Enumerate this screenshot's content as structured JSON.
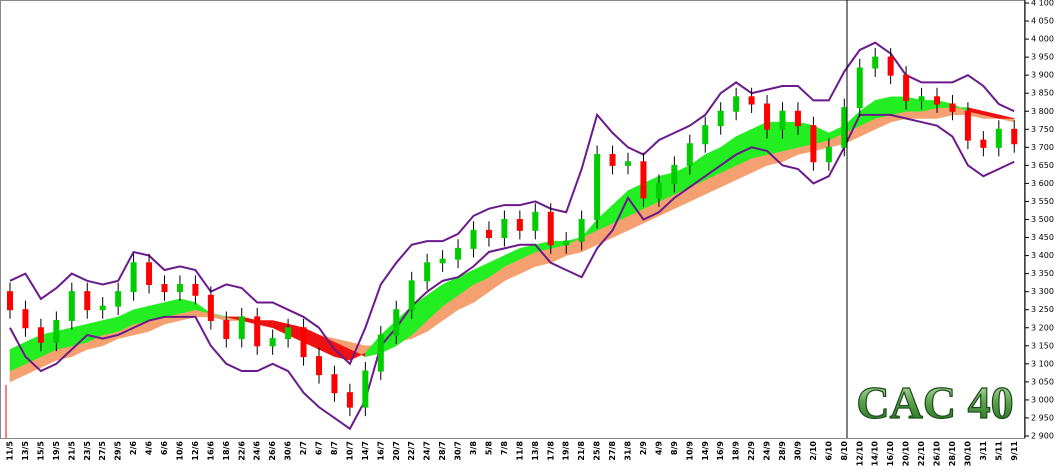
{
  "chart_data": {
    "type": "candlestick",
    "title": "CAC 40",
    "categories": [
      "11/5",
      "13/5",
      "15/5",
      "19/5",
      "21/5",
      "23/5",
      "27/5",
      "29/5",
      "2/6",
      "4/6",
      "6/6",
      "10/6",
      "12/6",
      "16/6",
      "18/6",
      "22/6",
      "24/6",
      "26/6",
      "30/6",
      "2/7",
      "6/7",
      "8/7",
      "10/7",
      "14/7",
      "16/7",
      "20/7",
      "22/7",
      "24/7",
      "28/7",
      "30/7",
      "3/8",
      "5/8",
      "7/8",
      "11/8",
      "13/8",
      "17/8",
      "19/8",
      "21/8",
      "25/8",
      "27/8",
      "31/8",
      "2/9",
      "4/9",
      "8/9",
      "10/9",
      "14/9",
      "16/9",
      "18/9",
      "22/9",
      "24/9",
      "28/9",
      "30/9",
      "2/10",
      "6/10",
      "8/10",
      "12/10",
      "14/10",
      "16/10",
      "20/10",
      "22/10",
      "26/10",
      "28/10",
      "30/10",
      "3/11",
      "5/11",
      "9/11"
    ],
    "open": [
      3300,
      3250,
      3200,
      3160,
      3220,
      3300,
      3250,
      3260,
      3300,
      3380,
      3320,
      3300,
      3320,
      3290,
      3220,
      3170,
      3230,
      3150,
      3170,
      3200,
      3120,
      3070,
      3020,
      2980,
      3080,
      3180,
      3250,
      3330,
      3380,
      3390,
      3420,
      3470,
      3450,
      3500,
      3470,
      3520,
      3430,
      3440,
      3500,
      3680,
      3650,
      3660,
      3560,
      3600,
      3650,
      3710,
      3760,
      3800,
      3840,
      3820,
      3750,
      3800,
      3760,
      3660,
      3700,
      3810,
      3920,
      3950,
      3900,
      3830,
      3840,
      3820,
      3800,
      3720,
      3700,
      3750
    ],
    "high": [
      3325,
      3275,
      3225,
      3245,
      3325,
      3325,
      3285,
      3325,
      3405,
      3405,
      3345,
      3345,
      3345,
      3315,
      3245,
      3255,
      3255,
      3195,
      3225,
      3225,
      3145,
      3095,
      3045,
      3105,
      3205,
      3275,
      3355,
      3405,
      3415,
      3445,
      3495,
      3495,
      3525,
      3525,
      3545,
      3545,
      3465,
      3525,
      3705,
      3705,
      3685,
      3685,
      3625,
      3675,
      3735,
      3785,
      3825,
      3865,
      3865,
      3845,
      3825,
      3825,
      3785,
      3725,
      3835,
      3945,
      3975,
      3975,
      3925,
      3865,
      3865,
      3845,
      3825,
      3745,
      3775,
      3775
    ],
    "low": [
      3225,
      3175,
      3135,
      3135,
      3195,
      3225,
      3225,
      3235,
      3275,
      3295,
      3275,
      3275,
      3265,
      3195,
      3145,
      3145,
      3125,
      3125,
      3145,
      3095,
      3045,
      2995,
      2955,
      2955,
      3055,
      3155,
      3225,
      3305,
      3355,
      3365,
      3395,
      3425,
      3425,
      3445,
      3445,
      3405,
      3405,
      3415,
      3475,
      3625,
      3625,
      3535,
      3535,
      3575,
      3625,
      3685,
      3735,
      3775,
      3795,
      3725,
      3725,
      3735,
      3635,
      3635,
      3675,
      3785,
      3895,
      3875,
      3805,
      3805,
      3795,
      3775,
      3695,
      3675,
      3675,
      3685
    ],
    "close": [
      3250,
      3200,
      3160,
      3220,
      3300,
      3250,
      3260,
      3300,
      3380,
      3320,
      3300,
      3320,
      3290,
      3220,
      3170,
      3230,
      3150,
      3170,
      3200,
      3120,
      3070,
      3020,
      2980,
      3080,
      3180,
      3250,
      3330,
      3380,
      3390,
      3420,
      3470,
      3450,
      3500,
      3470,
      3520,
      3430,
      3440,
      3500,
      3680,
      3650,
      3660,
      3560,
      3600,
      3650,
      3710,
      3760,
      3800,
      3840,
      3820,
      3750,
      3800,
      3760,
      3660,
      3700,
      3810,
      3920,
      3950,
      3900,
      3830,
      3840,
      3820,
      3800,
      3720,
      3700,
      3750,
      3710
    ],
    "up_color": "#00cc00",
    "down_color": "#ff0000",
    "bands": {
      "color": "#6a1a8a",
      "upper": [
        3330,
        3350,
        3280,
        3310,
        3350,
        3330,
        3320,
        3330,
        3410,
        3400,
        3360,
        3370,
        3360,
        3300,
        3320,
        3310,
        3270,
        3270,
        3250,
        3230,
        3200,
        3140,
        3100,
        3200,
        3320,
        3380,
        3430,
        3440,
        3440,
        3460,
        3510,
        3530,
        3540,
        3540,
        3550,
        3530,
        3520,
        3640,
        3790,
        3740,
        3700,
        3680,
        3720,
        3740,
        3760,
        3790,
        3850,
        3880,
        3850,
        3860,
        3870,
        3870,
        3830,
        3830,
        3910,
        3970,
        3990,
        3960,
        3900,
        3880,
        3880,
        3880,
        3900,
        3870,
        3820,
        3800
      ],
      "lower": [
        3200,
        3120,
        3080,
        3100,
        3140,
        3180,
        3170,
        3180,
        3200,
        3220,
        3230,
        3230,
        3230,
        3150,
        3100,
        3080,
        3080,
        3100,
        3080,
        3020,
        2980,
        2950,
        2920,
        3000,
        3150,
        3200,
        3260,
        3300,
        3330,
        3340,
        3370,
        3410,
        3420,
        3430,
        3430,
        3380,
        3360,
        3340,
        3420,
        3470,
        3560,
        3500,
        3520,
        3560,
        3590,
        3620,
        3650,
        3680,
        3700,
        3690,
        3650,
        3640,
        3600,
        3620,
        3700,
        3790,
        3790,
        3790,
        3780,
        3770,
        3760,
        3730,
        3650,
        3620,
        3640,
        3660
      ]
    },
    "ribbon": {
      "rise_color": "#22ee22",
      "fall_color": "#ee1111",
      "base_color": "#f4a070",
      "fast": [
        3140,
        3160,
        3180,
        3190,
        3200,
        3210,
        3220,
        3230,
        3250,
        3260,
        3270,
        3280,
        3270,
        3240,
        3230,
        3220,
        3210,
        3200,
        3180,
        3160,
        3140,
        3120,
        3110,
        3130,
        3180,
        3220,
        3260,
        3290,
        3320,
        3340,
        3360,
        3380,
        3400,
        3420,
        3430,
        3440,
        3440,
        3450,
        3500,
        3540,
        3580,
        3600,
        3620,
        3630,
        3650,
        3680,
        3700,
        3730,
        3750,
        3770,
        3770,
        3770,
        3760,
        3740,
        3760,
        3800,
        3830,
        3840,
        3840,
        3830,
        3830,
        3820,
        3800,
        3790,
        3780,
        3780
      ],
      "mid": [
        3080,
        3100,
        3120,
        3140,
        3150,
        3160,
        3180,
        3190,
        3210,
        3220,
        3230,
        3240,
        3250,
        3240,
        3230,
        3230,
        3220,
        3220,
        3210,
        3200,
        3180,
        3160,
        3140,
        3120,
        3130,
        3150,
        3180,
        3220,
        3260,
        3290,
        3320,
        3340,
        3370,
        3390,
        3410,
        3420,
        3430,
        3450,
        3470,
        3490,
        3510,
        3530,
        3550,
        3570,
        3590,
        3610,
        3630,
        3650,
        3670,
        3680,
        3690,
        3700,
        3710,
        3720,
        3740,
        3760,
        3780,
        3790,
        3800,
        3800,
        3810,
        3810,
        3810,
        3800,
        3790,
        3780
      ],
      "slow": [
        3050,
        3070,
        3090,
        3110,
        3120,
        3140,
        3150,
        3170,
        3180,
        3190,
        3210,
        3220,
        3230,
        3230,
        3220,
        3220,
        3210,
        3200,
        3200,
        3190,
        3180,
        3170,
        3160,
        3150,
        3150,
        3160,
        3170,
        3190,
        3220,
        3250,
        3270,
        3300,
        3330,
        3350,
        3370,
        3380,
        3400,
        3410,
        3430,
        3450,
        3470,
        3490,
        3510,
        3530,
        3550,
        3570,
        3590,
        3610,
        3630,
        3650,
        3660,
        3680,
        3690,
        3700,
        3710,
        3730,
        3750,
        3770,
        3780,
        3780,
        3780,
        3790,
        3790,
        3780,
        3780,
        3770
      ]
    },
    "ylim": [
      2900,
      4100
    ],
    "yticks": [
      {
        "value": 2900,
        "label": "2 900"
      },
      {
        "value": 2950,
        "label": "2 950"
      },
      {
        "value": 3000,
        "label": "3 000"
      },
      {
        "value": 3050,
        "label": "3 050"
      },
      {
        "value": 3100,
        "label": "3 100"
      },
      {
        "value": 3150,
        "label": "3 150"
      },
      {
        "value": 3200,
        "label": "3 200"
      },
      {
        "value": 3250,
        "label": "3 250"
      },
      {
        "value": 3300,
        "label": "3 300"
      },
      {
        "value": 3350,
        "label": "3 350"
      },
      {
        "value": 3400,
        "label": "3 400"
      },
      {
        "value": 3450,
        "label": "3 450"
      },
      {
        "value": 3500,
        "label": "3 500"
      },
      {
        "value": 3550,
        "label": "3 550"
      },
      {
        "value": 3600,
        "label": "3 600"
      },
      {
        "value": 3650,
        "label": "3 650"
      },
      {
        "value": 3700,
        "label": "3 700"
      },
      {
        "value": 3750,
        "label": "3 750"
      },
      {
        "value": 3800,
        "label": "3 800"
      },
      {
        "value": 3850,
        "label": "3 850"
      },
      {
        "value": 3900,
        "label": "3 900"
      },
      {
        "value": 3950,
        "label": "3 950"
      },
      {
        "value": 4000,
        "label": "4 000"
      },
      {
        "value": 4050,
        "label": "4 050"
      },
      {
        "value": 4100,
        "label": "4 100"
      }
    ]
  }
}
